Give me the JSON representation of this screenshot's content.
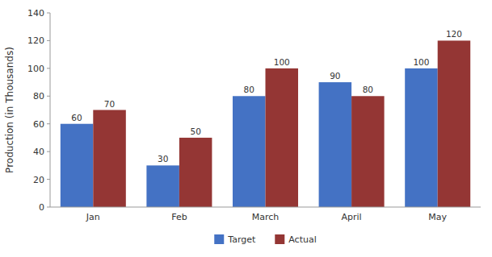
{
  "chart_data": {
    "type": "bar",
    "ylabel": "Production (in Thousands)",
    "categories": [
      "Jan",
      "Feb",
      "March",
      "April",
      "May"
    ],
    "series": [
      {
        "name": "Target",
        "color": "#4472C4",
        "values": [
          60,
          30,
          80,
          90,
          100
        ]
      },
      {
        "name": "Actual",
        "color": "#943634",
        "values": [
          70,
          50,
          100,
          80,
          120
        ]
      }
    ],
    "ylim": [
      0,
      140
    ],
    "yticks": [
      0,
      20,
      40,
      60,
      80,
      100,
      120,
      140
    ],
    "grid": false,
    "legend": "bottom",
    "data_labels": true
  }
}
